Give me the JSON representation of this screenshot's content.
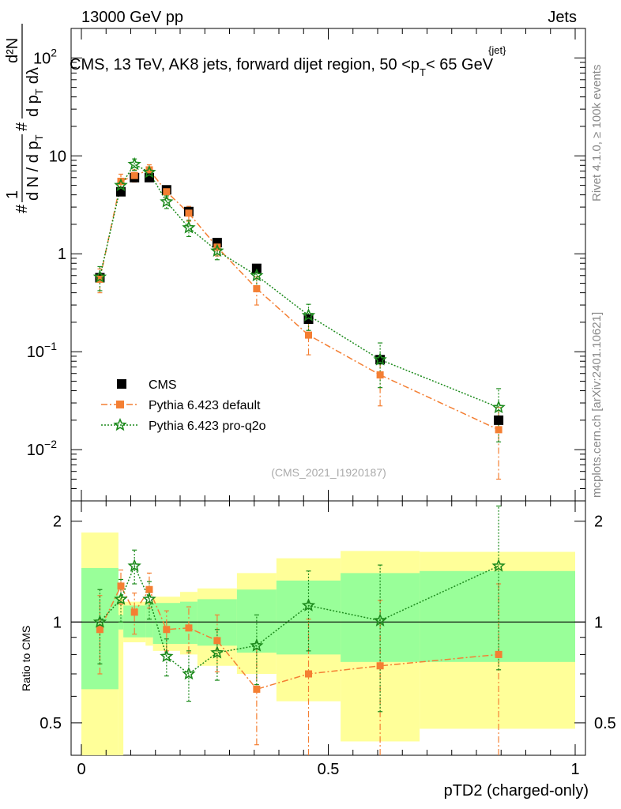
{
  "header": {
    "energy_label": "13000 GeV pp",
    "category_label": "Jets"
  },
  "side_labels": {
    "rivet": "Rivet 4.1.0, ≥ 100k events",
    "mcplots": "mcplots.cern.ch [arXiv:2401.10621]"
  },
  "colors": {
    "cms": "#000000",
    "default": "#f47f33",
    "proq2o": "#1c8a1c",
    "band_inner": "#99ff99",
    "band_outer": "#ffff99"
  },
  "chart_data": {
    "type": "scatter",
    "title": "CMS, 13 TeV, AK8 jets, forward dijet region, 50 <p_T^{jet}< 65 GeV",
    "title_parts": {
      "main": "CMS, 13 TeV, AK8 jets, forward dijet region, 50 <p",
      "sub": "T",
      "sup": "{jet}",
      "tail": "< 65 GeV"
    },
    "ylabel_parts": {
      "hash": "#",
      "one": "1",
      "den": "d N / d p",
      "den_sub": "T",
      "num_hash": "#",
      "num_den": "d p",
      "num_den_sub": "T",
      "num_tail": "dλ",
      "num_top": "d²N"
    },
    "xlabel": "pTD2 (charged-only)",
    "ratio_ylabel": "Ratio to CMS",
    "watermark": "(CMS_2021_I1920187)",
    "xlim": [
      0,
      1
    ],
    "ylim": [
      0.003,
      200
    ],
    "ratio_ylim": [
      0.4,
      2.3
    ],
    "x_ticks": [
      {
        "v": 0,
        "t": "0"
      },
      {
        "v": 0.5,
        "t": "0.5"
      },
      {
        "v": 1,
        "t": "1"
      }
    ],
    "y_ticks": [
      {
        "v": 0.01,
        "b": "10",
        "e": "−2"
      },
      {
        "v": 0.1,
        "b": "10",
        "e": "−1"
      },
      {
        "v": 1,
        "b": "1",
        "e": ""
      },
      {
        "v": 10,
        "b": "10",
        "e": ""
      },
      {
        "v": 100,
        "b": "10",
        "e": "2"
      }
    ],
    "ratio_ticks": [
      {
        "v": 0.5,
        "t": "0.5"
      },
      {
        "v": 1,
        "t": "1"
      },
      {
        "v": 2,
        "t": "2"
      }
    ],
    "x": [
      0.0375,
      0.08,
      0.1075,
      0.1375,
      0.1725,
      0.2175,
      0.275,
      0.355,
      0.46,
      0.605,
      0.845
    ],
    "bin_edges": [
      0,
      0.075,
      0.085,
      0.13,
      0.145,
      0.2,
      0.235,
      0.315,
      0.395,
      0.525,
      0.685,
      1.0
    ],
    "series": [
      {
        "name": "CMS",
        "marker": "square",
        "values": [
          0.57,
          4.3,
          6.0,
          6.0,
          4.5,
          2.7,
          1.3,
          0.71,
          0.215,
          0.083,
          0.02
        ]
      },
      {
        "name": "Pythia 6.423 default",
        "marker": "square-small",
        "line": "dashdot",
        "values": [
          0.55,
          5.5,
          6.3,
          7.2,
          4.3,
          2.6,
          1.17,
          0.44,
          0.148,
          0.058,
          0.016
        ],
        "err_lo": [
          0.15,
          1.0,
          0.9,
          0.9,
          0.6,
          0.45,
          0.22,
          0.14,
          0.055,
          0.03,
          0.011
        ],
        "err_hi": [
          0.15,
          1.0,
          0.9,
          0.9,
          0.6,
          0.45,
          0.22,
          0.14,
          0.055,
          0.03,
          0.011
        ]
      },
      {
        "name": "Pythia 6.423 pro-q2o",
        "marker": "star",
        "line": "dotted",
        "values": [
          0.58,
          5.0,
          8.2,
          6.8,
          3.4,
          1.85,
          1.07,
          0.6,
          0.235,
          0.083,
          0.027
        ],
        "err_lo": [
          0.16,
          0.9,
          1.1,
          0.9,
          0.5,
          0.35,
          0.2,
          0.15,
          0.07,
          0.04,
          0.015
        ],
        "err_hi": [
          0.16,
          0.9,
          1.1,
          0.9,
          0.5,
          0.35,
          0.2,
          0.15,
          0.07,
          0.04,
          0.015
        ]
      }
    ],
    "ratio": {
      "default": {
        "values": [
          0.95,
          1.28,
          1.07,
          1.25,
          0.95,
          0.96,
          0.88,
          0.63,
          0.7,
          0.74,
          0.8
        ],
        "err_lo": [
          0.25,
          0.15,
          0.15,
          0.15,
          0.13,
          0.15,
          0.17,
          0.2,
          0.32,
          0.42,
          0.5
        ],
        "err_hi": [
          0.25,
          0.15,
          0.15,
          0.15,
          0.13,
          0.15,
          0.17,
          0.2,
          0.32,
          0.42,
          0.5
        ]
      },
      "proq2o": {
        "values": [
          1.0,
          1.17,
          1.47,
          1.17,
          0.79,
          0.7,
          0.81,
          0.85,
          1.12,
          1.01,
          1.47
        ],
        "err_lo": [
          0.25,
          0.17,
          0.17,
          0.15,
          0.1,
          0.12,
          0.14,
          0.2,
          0.3,
          0.47,
          0.75
        ],
        "err_hi": [
          0.25,
          0.17,
          0.17,
          0.15,
          0.1,
          0.12,
          0.14,
          0.2,
          0.3,
          0.47,
          0.75
        ]
      },
      "band_inner": [
        [
          0.63,
          1.45
        ],
        [
          0.95,
          1.05
        ],
        [
          0.9,
          1.12
        ],
        [
          0.9,
          1.13
        ],
        [
          0.86,
          1.14
        ],
        [
          0.86,
          1.15
        ],
        [
          0.85,
          1.17
        ],
        [
          0.81,
          1.25
        ],
        [
          0.8,
          1.33
        ],
        [
          0.76,
          1.4
        ],
        [
          0.76,
          1.42
        ]
      ],
      "band_outer": [
        [
          0.3,
          1.85
        ],
        [
          0.3,
          1.2
        ],
        [
          0.87,
          1.15
        ],
        [
          0.85,
          1.15
        ],
        [
          0.82,
          1.19
        ],
        [
          0.8,
          1.23
        ],
        [
          0.74,
          1.26
        ],
        [
          0.7,
          1.4
        ],
        [
          0.58,
          1.55
        ],
        [
          0.44,
          1.63
        ],
        [
          0.48,
          1.62
        ]
      ]
    },
    "legend_position": "bottom-left"
  }
}
